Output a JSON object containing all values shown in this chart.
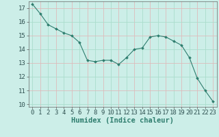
{
  "x": [
    0,
    1,
    2,
    3,
    4,
    5,
    6,
    7,
    8,
    9,
    10,
    11,
    12,
    13,
    14,
    15,
    16,
    17,
    18,
    19,
    20,
    21,
    22,
    23
  ],
  "y": [
    17.3,
    16.6,
    15.8,
    15.5,
    15.2,
    15.0,
    14.5,
    13.2,
    13.1,
    13.2,
    13.2,
    12.9,
    13.4,
    14.0,
    14.1,
    14.9,
    15.0,
    14.9,
    14.6,
    14.3,
    13.4,
    11.9,
    11.0,
    10.2
  ],
  "line_color": "#2e7d6e",
  "marker_color": "#2e7d6e",
  "bg_color": "#cceee8",
  "grid_color_teal": "#aaddcc",
  "grid_color_pink": "#ddbbbb",
  "xlabel": "Humidex (Indice chaleur)",
  "ylim": [
    9.8,
    17.5
  ],
  "xlim": [
    -0.5,
    23.5
  ],
  "yticks": [
    10,
    11,
    12,
    13,
    14,
    15,
    16,
    17
  ],
  "xticks": [
    0,
    1,
    2,
    3,
    4,
    5,
    6,
    7,
    8,
    9,
    10,
    11,
    12,
    13,
    14,
    15,
    16,
    17,
    18,
    19,
    20,
    21,
    22,
    23
  ],
  "xlabel_fontsize": 7.5,
  "tick_fontsize": 6.5
}
